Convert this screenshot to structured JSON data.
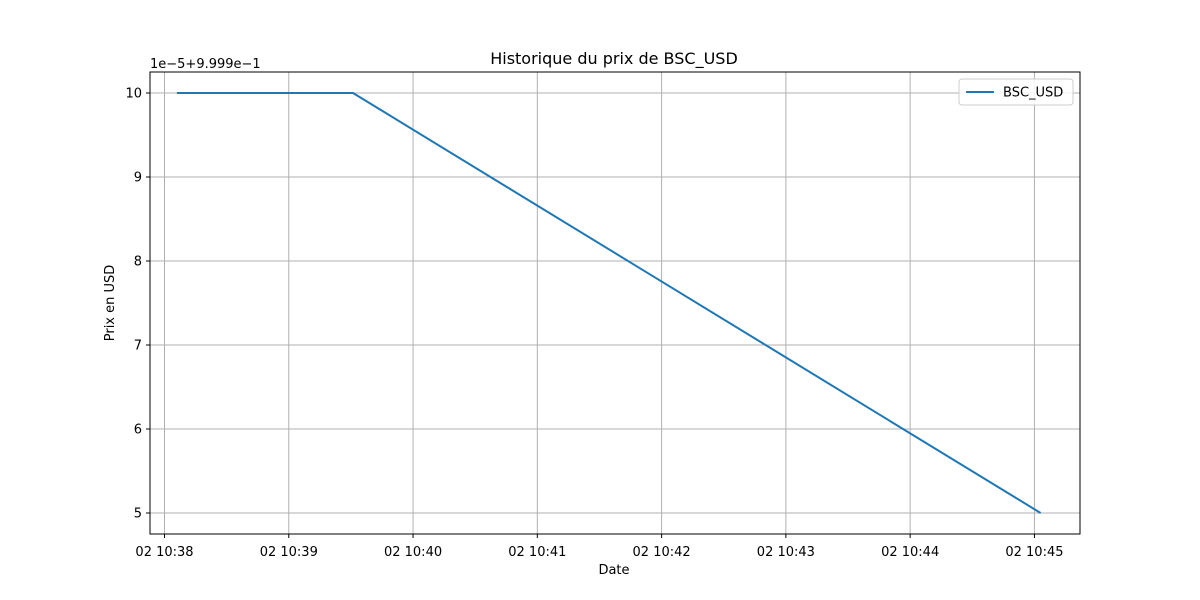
{
  "chart_data": {
    "type": "line",
    "title": "Historique du prix de BSC_USD",
    "xlabel": "Date",
    "ylabel": "Prix en USD",
    "offset_label": "1e−5+9.999e−1",
    "x_ticks": [
      "02 10:38",
      "02 10:39",
      "02 10:40",
      "02 10:41",
      "02 10:42",
      "02 10:43",
      "02 10:44",
      "02 10:45"
    ],
    "y_ticks": [
      "5",
      "6",
      "7",
      "8",
      "9",
      "10"
    ],
    "xlim": [
      "10:37:53",
      "10:45:22"
    ],
    "ylim": [
      4.75,
      10.25
    ],
    "grid": true,
    "legend_position": "upper right",
    "series": [
      {
        "name": "BSC_USD",
        "color": "#1f77b4",
        "x": [
          "10:38:06",
          "10:39:31",
          "10:45:03"
        ],
        "y": [
          10,
          10,
          5
        ]
      }
    ]
  }
}
